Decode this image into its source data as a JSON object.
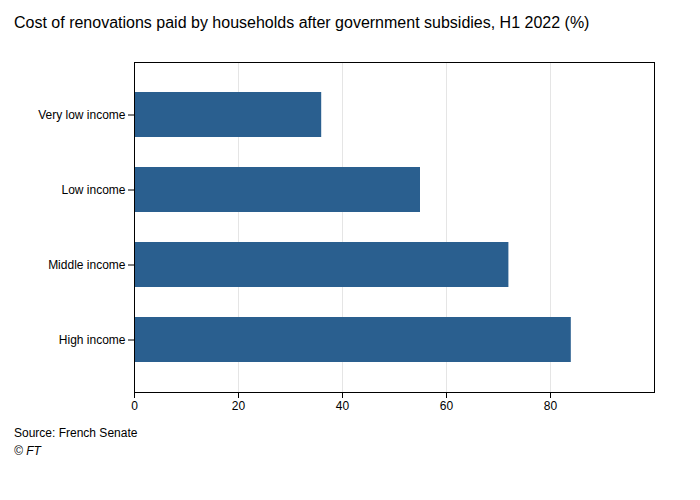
{
  "chart_data": {
    "type": "bar",
    "title": "Cost of renovations paid by households after government subsidies, H1 2022 (%)",
    "categories": [
      "Very low income",
      "Low income",
      "Middle income",
      "High income"
    ],
    "values": [
      36,
      55,
      72,
      84
    ],
    "color": "#2a5f8f",
    "orientation": "horizontal",
    "xlim": [
      0,
      100
    ],
    "xticks": [
      0,
      20,
      40,
      60,
      80
    ],
    "grid": true,
    "annotations": [
      "Source: French Senate",
      "© FT"
    ]
  }
}
